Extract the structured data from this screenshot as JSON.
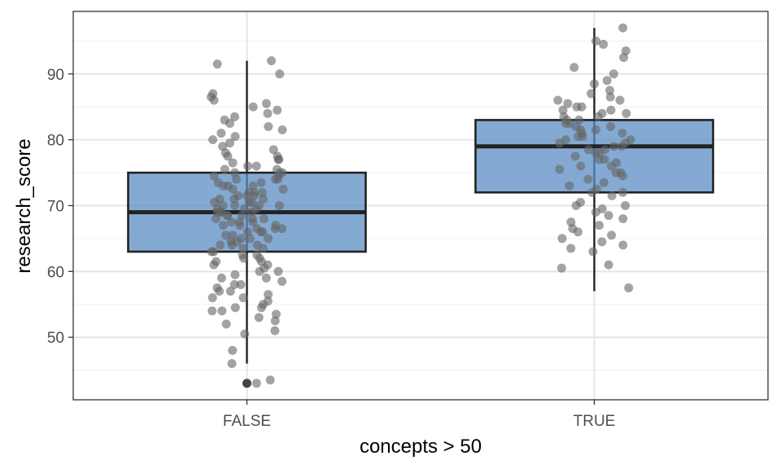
{
  "chart_data": {
    "type": "box",
    "title": "",
    "xlabel": "concepts > 50",
    "ylabel": "research_score",
    "categories": [
      "FALSE",
      "TRUE"
    ],
    "ylim": [
      40.5,
      99.5
    ],
    "yticks": [
      50,
      60,
      70,
      80,
      90
    ],
    "grid": true,
    "colors": {
      "box_fill": "#5b8ec4",
      "box_stroke": "#222222",
      "point": "#666666",
      "grid_major": "#e5e5e5",
      "grid_minor": "#f0f0f0",
      "panel_border": "#333333"
    },
    "boxes": [
      {
        "category": "FALSE",
        "whisker_low": 46,
        "q1": 63,
        "median": 69,
        "q3": 75,
        "whisker_high": 92,
        "outliers": [
          43
        ]
      },
      {
        "category": "TRUE",
        "whisker_low": 57,
        "q1": 72,
        "median": 79,
        "q3": 83,
        "whisker_high": 97,
        "outliers": []
      }
    ],
    "points": [
      {
        "category": "FALSE",
        "values": [
          91.5,
          92,
          90,
          87,
          86.5,
          86,
          85.5,
          85,
          84.5,
          84,
          83.5,
          83,
          82.5,
          82,
          81.5,
          81,
          80.5,
          80,
          79.5,
          79,
          78.5,
          78,
          77.5,
          77.5,
          77,
          77,
          76.5,
          76,
          76,
          75.5,
          75.5,
          75,
          75,
          75,
          74.5,
          74.5,
          74,
          74,
          74,
          73.5,
          73.5,
          73,
          73,
          73,
          72.5,
          72.5,
          72,
          72,
          72,
          71.5,
          71.5,
          71.5,
          71,
          71,
          71,
          70.5,
          70.5,
          70.5,
          70,
          70,
          70,
          70,
          69.5,
          69.5,
          69.5,
          69,
          69,
          69,
          69,
          68.5,
          68.5,
          68.5,
          68,
          68,
          68,
          67.5,
          67.5,
          67.5,
          67,
          67,
          67,
          66.5,
          66.5,
          66.5,
          66,
          66,
          66,
          65.5,
          65.5,
          65,
          65,
          65,
          64.5,
          64.5,
          64,
          64,
          64,
          63.5,
          63.5,
          63,
          63,
          62.5,
          62.5,
          62,
          62,
          61.5,
          61.5,
          61,
          61,
          60.5,
          60,
          60,
          59.5,
          59,
          59,
          58.5,
          58,
          58,
          57.5,
          57,
          57,
          56.5,
          56,
          56,
          55.5,
          55,
          54.5,
          54.5,
          54,
          54,
          53.5,
          53,
          52.5,
          52,
          51,
          50.5,
          48,
          46,
          43.5,
          43
        ]
      },
      {
        "category": "TRUE",
        "values": [
          97,
          95,
          94.5,
          93.5,
          92.5,
          91,
          90,
          89,
          88.5,
          87.5,
          87,
          86.5,
          86,
          86,
          85.5,
          85,
          85,
          84.5,
          84.5,
          84,
          84,
          83.5,
          83.5,
          83,
          83,
          82.5,
          82.5,
          82,
          82,
          81.5,
          81.5,
          81,
          81,
          80.5,
          80.5,
          80,
          80,
          79.5,
          79.5,
          79,
          79,
          78.5,
          78.5,
          78,
          78,
          77.5,
          77,
          77,
          76.5,
          76,
          76,
          75.5,
          75,
          75,
          74.5,
          74,
          73.5,
          73,
          72.5,
          72,
          72,
          71.5,
          70.5,
          70,
          70,
          69.5,
          69,
          68.5,
          68,
          67.5,
          67,
          66.5,
          66,
          65.5,
          65,
          64.5,
          64,
          63.5,
          63,
          61,
          60.5,
          57.5
        ]
      }
    ]
  }
}
